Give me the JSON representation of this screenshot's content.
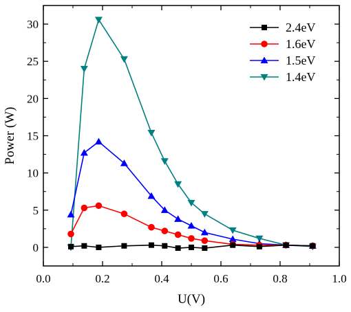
{
  "chart_data": {
    "type": "line",
    "title": "",
    "xlabel": "U(V)",
    "ylabel": "Power (W)",
    "xlim": [
      0.0,
      1.0
    ],
    "ylim": [
      -2.5,
      32.5
    ],
    "xticks": [
      "0.0",
      "0.2",
      "0.4",
      "0.6",
      "0.8",
      "1.0"
    ],
    "xtick_values": [
      0.0,
      0.2,
      0.4,
      0.6,
      0.8,
      1.0
    ],
    "yticks": [
      "0",
      "5",
      "10",
      "15",
      "20",
      "25",
      "30"
    ],
    "ytick_values": [
      0,
      5,
      10,
      15,
      20,
      25,
      30
    ],
    "grid": false,
    "legend_position": "top-right",
    "series": [
      {
        "name": "2.4eV",
        "color": "#000000",
        "marker": "square",
        "x": [
          0.093,
          0.138,
          0.187,
          0.273,
          0.365,
          0.41,
          0.455,
          0.5,
          0.545,
          0.64,
          0.73,
          0.82,
          0.91
        ],
        "y": [
          0.1,
          0.2,
          0.0,
          0.2,
          0.3,
          0.2,
          -0.1,
          0.0,
          -0.1,
          0.3,
          0.1,
          0.3,
          0.2
        ]
      },
      {
        "name": "1.6eV",
        "color": "#ff0000",
        "marker": "circle",
        "x": [
          0.093,
          0.138,
          0.187,
          0.273,
          0.365,
          0.41,
          0.455,
          0.5,
          0.545,
          0.64,
          0.73,
          0.82,
          0.91
        ],
        "y": [
          1.8,
          5.3,
          5.6,
          4.5,
          2.7,
          2.2,
          1.7,
          1.2,
          0.9,
          0.4,
          0.3,
          0.3,
          0.2
        ]
      },
      {
        "name": "1.5eV",
        "color": "#0000ff",
        "marker": "triangle-up",
        "x": [
          0.093,
          0.138,
          0.187,
          0.273,
          0.365,
          0.41,
          0.455,
          0.5,
          0.545,
          0.64,
          0.73,
          0.82,
          0.91
        ],
        "y": [
          4.4,
          12.7,
          14.2,
          11.3,
          6.9,
          5.0,
          3.8,
          2.9,
          2.0,
          1.1,
          0.5,
          0.3,
          0.2
        ]
      },
      {
        "name": "1.4eV",
        "color": "#008080",
        "marker": "triangle-down",
        "x": [
          0.093,
          0.138,
          0.187,
          0.273,
          0.365,
          0.41,
          0.455,
          0.5,
          0.545,
          0.64,
          0.73,
          0.82,
          0.91
        ],
        "y": [
          0.0,
          24.0,
          30.6,
          25.3,
          15.4,
          11.6,
          8.5,
          6.0,
          4.5,
          2.3,
          1.2,
          0.3,
          0.1
        ]
      }
    ]
  }
}
